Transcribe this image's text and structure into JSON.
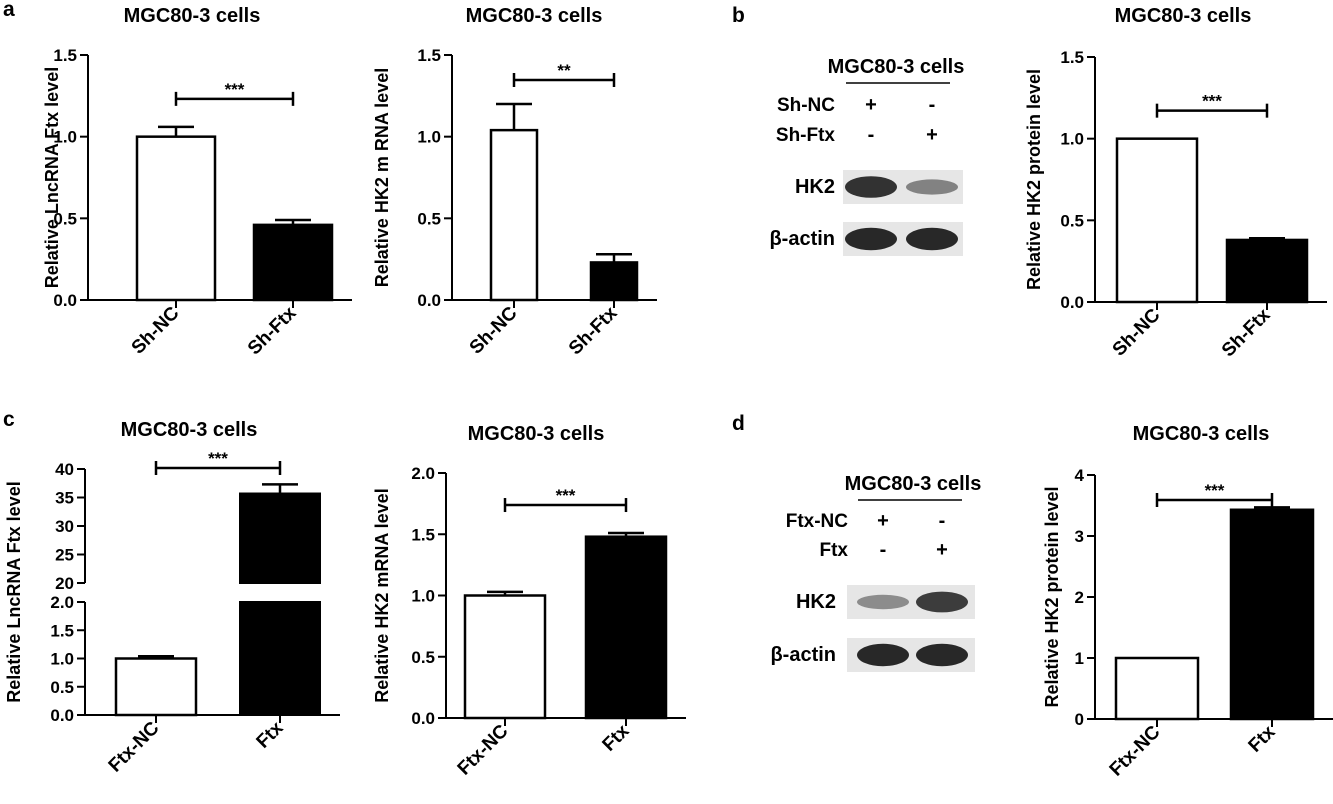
{
  "panels": {
    "a": "a",
    "b": "b",
    "c": "c",
    "d": "d"
  },
  "blot_b": {
    "title": "MGC80-3 cells",
    "rows": [
      {
        "label": "Sh-NC",
        "signs": [
          "+",
          "-"
        ]
      },
      {
        "label": "Sh-Ftx",
        "signs": [
          "-",
          "+"
        ]
      }
    ],
    "bands": [
      {
        "label": "HK2",
        "intensity": [
          0.85,
          0.45
        ]
      },
      {
        "label": "β-actin",
        "intensity": [
          0.9,
          0.9
        ]
      }
    ]
  },
  "blot_d": {
    "title": "MGC80-3 cells",
    "rows": [
      {
        "label": "Ftx-NC",
        "signs": [
          "+",
          "-"
        ]
      },
      {
        "label": "Ftx",
        "signs": [
          "-",
          "+"
        ]
      }
    ],
    "bands": [
      {
        "label": "HK2",
        "intensity": [
          0.4,
          0.8
        ]
      },
      {
        "label": "β-actin",
        "intensity": [
          0.9,
          0.9
        ]
      }
    ]
  },
  "chart_data": [
    {
      "type": "bar",
      "title": "MGC80-3 cells",
      "ylabel": "Relative  LncRNA Ftx level",
      "categories": [
        "Sh-NC",
        "Sh-Ftx"
      ],
      "values": [
        1.0,
        0.46
      ],
      "errors": [
        0.06,
        0.03
      ],
      "fills": [
        "#ffffff",
        "#000000"
      ],
      "ylim": [
        0,
        1.5
      ],
      "yticks": [
        "0.0",
        "0.5",
        "1.0",
        "1.5"
      ],
      "significance": "***"
    },
    {
      "type": "bar",
      "title": "MGC80-3 cells",
      "ylabel": "Relative  HK2 m RNA level",
      "categories": [
        "Sh-NC",
        "Sh-Ftx"
      ],
      "values": [
        1.04,
        0.23
      ],
      "errors": [
        0.16,
        0.05
      ],
      "fills": [
        "#ffffff",
        "#000000"
      ],
      "ylim": [
        0,
        1.5
      ],
      "yticks": [
        "0.0",
        "0.5",
        "1.0",
        "1.5"
      ],
      "significance": "**"
    },
    {
      "type": "bar",
      "title": "MGC80-3 cells",
      "ylabel": "Relative  HK2 protein level",
      "categories": [
        "Sh-NC",
        "Sh-Ftx"
      ],
      "values": [
        1.0,
        0.38
      ],
      "errors": [
        0.0,
        0.01
      ],
      "fills": [
        "#ffffff",
        "#000000"
      ],
      "ylim": [
        0,
        1.5
      ],
      "yticks": [
        "0.0",
        "0.5",
        "1.0",
        "1.5"
      ],
      "significance": "***"
    },
    {
      "type": "bar",
      "title": "MGC80-3 cells",
      "ylabel": "Relative  LncRNA Ftx level",
      "categories": [
        "Ftx-NC",
        "Ftx"
      ],
      "values": [
        1.0,
        35.7
      ],
      "errors": [
        0.04,
        1.6
      ],
      "fills": [
        "#ffffff",
        "#000000"
      ],
      "ylim": [
        0,
        40
      ],
      "axis_break": [
        2.0,
        20
      ],
      "yticks": [
        "0.0",
        "0.5",
        "1.0",
        "1.5",
        "2.0",
        "20",
        "25",
        "30",
        "35",
        "40"
      ],
      "significance": "***"
    },
    {
      "type": "bar",
      "title": "MGC80-3 cells",
      "ylabel": "Relative  HK2 mRNA level",
      "categories": [
        "Ftx-NC",
        "Ftx"
      ],
      "values": [
        1.0,
        1.48
      ],
      "errors": [
        0.03,
        0.03
      ],
      "fills": [
        "#ffffff",
        "#000000"
      ],
      "ylim": [
        0,
        2.0
      ],
      "yticks": [
        "0.0",
        "0.5",
        "1.0",
        "1.5",
        "2.0"
      ],
      "significance": "***"
    },
    {
      "type": "bar",
      "title": "MGC80-3 cells",
      "ylabel": "Relative  HK2 protein level",
      "categories": [
        "Ftx-NC",
        "Ftx"
      ],
      "values": [
        1.0,
        3.43
      ],
      "errors": [
        0.0,
        0.04
      ],
      "fills": [
        "#ffffff",
        "#000000"
      ],
      "ylim": [
        0,
        4
      ],
      "yticks": [
        "0",
        "1",
        "2",
        "3",
        "4"
      ],
      "significance": "***"
    }
  ]
}
